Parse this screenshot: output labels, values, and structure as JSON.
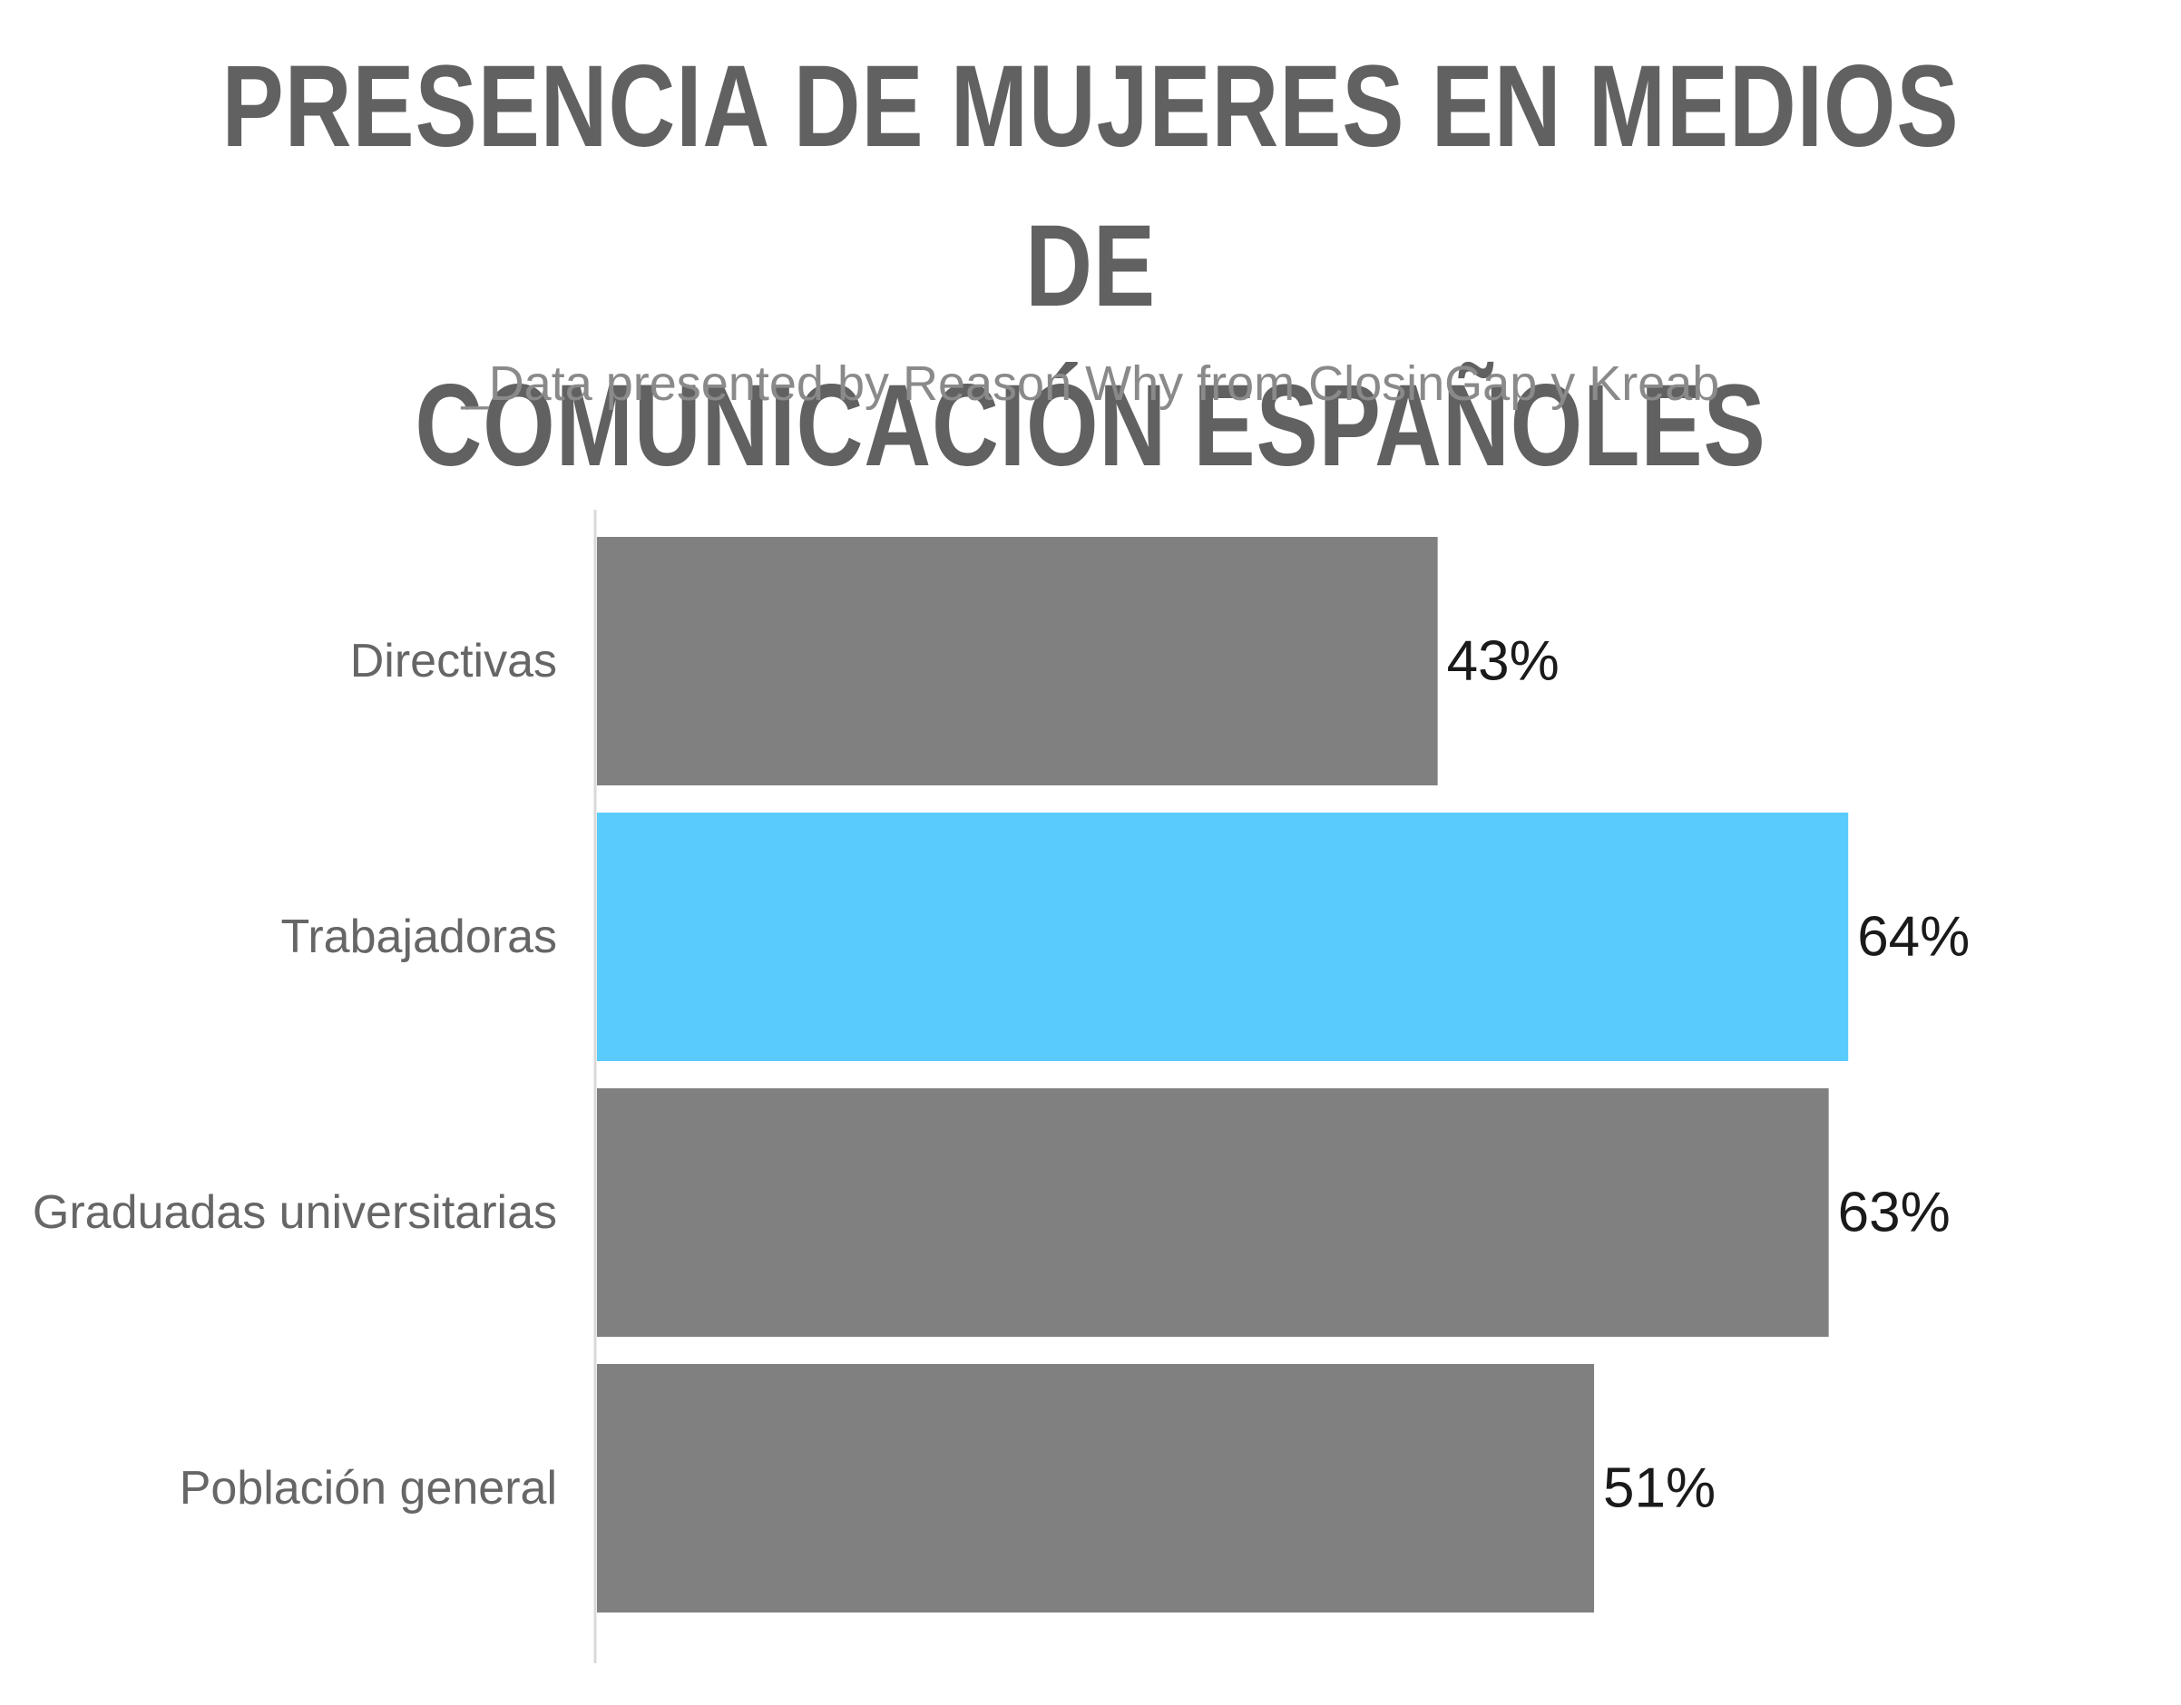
{
  "header": {
    "title_line1": "PRESENCIA DE MUJERES EN MEDIOS DE",
    "title_line2": "COMUNICACIÓN ESPAÑOLES",
    "subtitle": "_Data presented by Reason Why from ClosinGap y Kreab"
  },
  "chart_data": {
    "type": "bar",
    "orientation": "horizontal",
    "title": "PRESENCIA DE MUJERES EN MEDIOS DE COMUNICACIÓN ESPAÑOLES",
    "subtitle": "_Data presented by Reason Why from ClosinGap y Kreab",
    "categories": [
      "Directivas",
      "Trabajadoras",
      "Graduadas universitarias",
      "Población general"
    ],
    "values": [
      43,
      64,
      63,
      51
    ],
    "value_labels": [
      "43%",
      "64%",
      "63%",
      "51%"
    ],
    "unit": "%",
    "xlim": [
      0,
      100
    ],
    "grid": false,
    "legend": "none",
    "colors": [
      "#808080",
      "#59cbfc",
      "#808080",
      "#808080"
    ],
    "highlight_category": "Trabajadoras"
  }
}
